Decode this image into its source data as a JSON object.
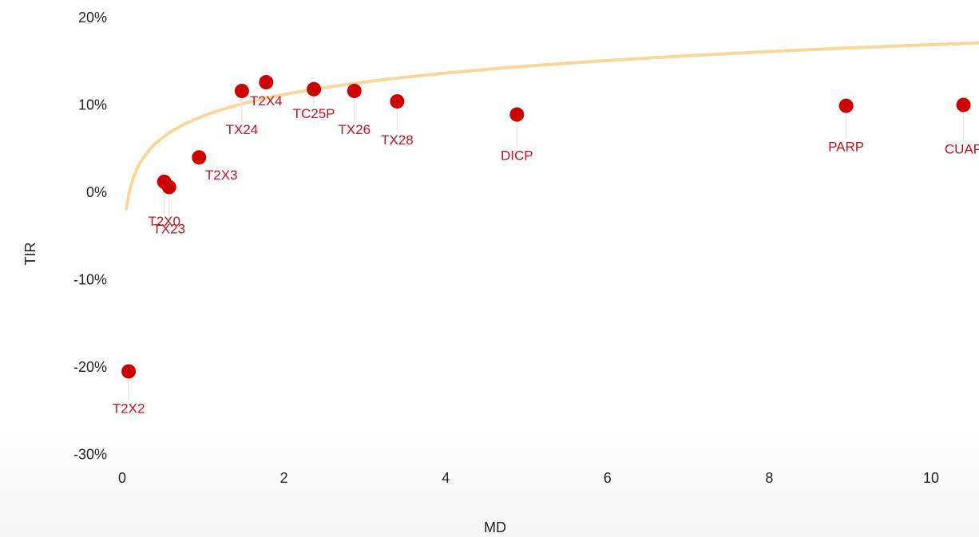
{
  "chart_data": {
    "type": "scatter",
    "title": "",
    "xlabel": "MD",
    "ylabel": "TIR",
    "xlim": [
      0,
      10.6
    ],
    "ylim": [
      -30,
      20
    ],
    "x_ticks": [
      {
        "value": 0,
        "label": "0"
      },
      {
        "value": 2,
        "label": "2"
      },
      {
        "value": 4,
        "label": "4"
      },
      {
        "value": 6,
        "label": "6"
      },
      {
        "value": 8,
        "label": "8"
      },
      {
        "value": 10,
        "label": "10"
      }
    ],
    "y_ticks": [
      {
        "value": 20,
        "label": "20%"
      },
      {
        "value": 10,
        "label": "10%"
      },
      {
        "value": 0,
        "label": "0%"
      },
      {
        "value": -10,
        "label": "-10%"
      },
      {
        "value": -20,
        "label": "-20%"
      },
      {
        "value": -30,
        "label": "-30%"
      }
    ],
    "grid": false,
    "series": [
      {
        "points": [
          {
            "x": 0.08,
            "y": -20.5,
            "label": "T2X2"
          },
          {
            "x": 0.52,
            "y": 1.2,
            "label": "T2X0"
          },
          {
            "x": 0.58,
            "y": 0.6,
            "label": "TX23"
          },
          {
            "x": 0.95,
            "y": 4.0,
            "label": "T2X3"
          },
          {
            "x": 1.48,
            "y": 11.6,
            "label": "TX24"
          },
          {
            "x": 1.78,
            "y": 12.6,
            "label": "T2X4"
          },
          {
            "x": 2.37,
            "y": 11.8,
            "label": "TC25P"
          },
          {
            "x": 2.87,
            "y": 11.6,
            "label": "TX26"
          },
          {
            "x": 3.4,
            "y": 10.4,
            "label": "TX28"
          },
          {
            "x": 4.88,
            "y": 8.9,
            "label": "DICP"
          },
          {
            "x": 8.95,
            "y": 9.9,
            "label": "PARP"
          },
          {
            "x": 10.4,
            "y": 10.0,
            "label": "CUAP"
          }
        ]
      }
    ],
    "trendline": {
      "type": "logarithmic",
      "a": 8.72,
      "b": 3.55,
      "x_start": 0.05,
      "x_end": 10.6
    },
    "colors": {
      "point": "#cc0000",
      "label": "#c1121f",
      "trendline": "#f9d79b",
      "axis_text": "#222222",
      "leader": "#e6e6e6"
    }
  }
}
